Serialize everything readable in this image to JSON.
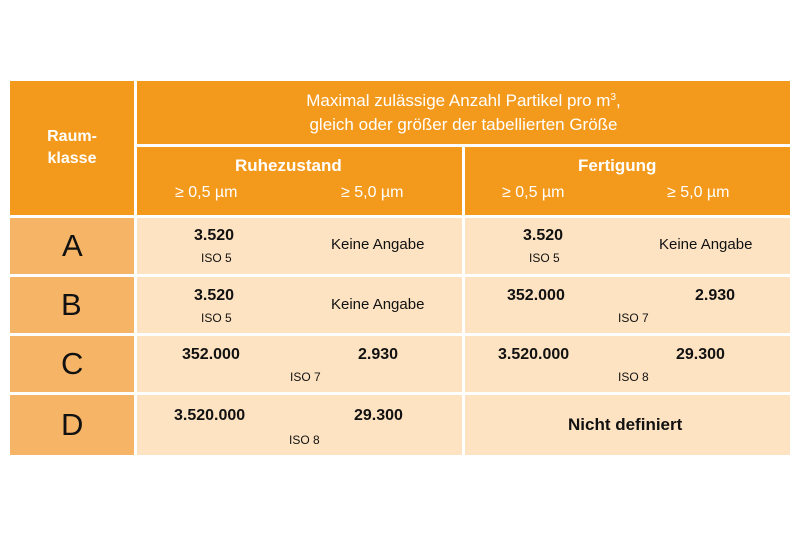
{
  "header": {
    "class_label_line1": "Raum-",
    "class_label_line2": "klasse",
    "title_line1": "Maximal zulässige Anzahl Partikel pro m",
    "title_sup": "3",
    "title_line1_end": ",",
    "title_line2": "gleich oder größer der tabellierten Größe",
    "group_rest": "Ruhezustand",
    "group_production": "Fertigung",
    "size_05": "≥ 0,5 µm",
    "size_50": "≥ 5,0 µm"
  },
  "rows": [
    {
      "class": "A",
      "rest_05": "3.520",
      "rest_50": "Keine Angabe",
      "rest_iso": "ISO 5",
      "prod_05": "3.520",
      "prod_50": "Keine Angabe",
      "prod_iso": "ISO 5"
    },
    {
      "class": "B",
      "rest_05": "3.520",
      "rest_50": "Keine Angabe",
      "rest_iso": "ISO 5",
      "prod_05": "352.000",
      "prod_50": "2.930",
      "prod_iso": "ISO 7"
    },
    {
      "class": "C",
      "rest_05": "352.000",
      "rest_50": "2.930",
      "rest_iso": "ISO 7",
      "prod_05": "3.520.000",
      "prod_50": "29.300",
      "prod_iso": "ISO 8"
    },
    {
      "class": "D",
      "rest_05": "3.520.000",
      "rest_50": "29.300",
      "rest_iso": "ISO 8",
      "prod_text": "Nicht definiert"
    }
  ]
}
